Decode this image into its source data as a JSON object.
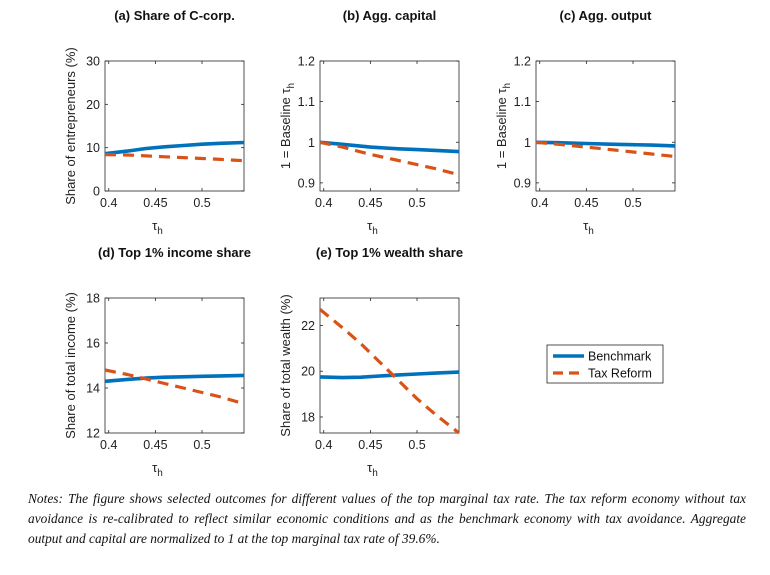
{
  "chart_data": [
    {
      "type": "line",
      "title": "(a) Share of C-corp.",
      "xlabel": "τh",
      "ylabel": "Share of entrepreneurs (%)",
      "xlim": [
        0.396,
        0.545
      ],
      "ylim": [
        0,
        30
      ],
      "xticks": [
        0.4,
        0.45,
        0.5
      ],
      "yticks": [
        0,
        10,
        20,
        30
      ],
      "series": [
        {
          "name": "Benchmark",
          "x": [
            0.396,
            0.42,
            0.44,
            0.46,
            0.48,
            0.5,
            0.52,
            0.545
          ],
          "y": [
            8.6,
            9.2,
            9.8,
            10.2,
            10.5,
            10.8,
            11.0,
            11.2
          ]
        },
        {
          "name": "Tax Reform",
          "x": [
            0.396,
            0.42,
            0.44,
            0.46,
            0.48,
            0.5,
            0.52,
            0.545
          ],
          "y": [
            8.4,
            8.3,
            8.1,
            7.9,
            7.7,
            7.5,
            7.3,
            7.0
          ]
        }
      ]
    },
    {
      "type": "line",
      "title": "(b) Agg. capital",
      "xlabel": "τh",
      "ylabel": "1 = Baseline τh",
      "xlim": [
        0.396,
        0.545
      ],
      "ylim": [
        0.88,
        1.2
      ],
      "xticks": [
        0.4,
        0.45,
        0.5
      ],
      "yticks": [
        0.9,
        1.0,
        1.1,
        1.2
      ],
      "ytick_labels": [
        "0.9",
        "1",
        "1.1",
        "1.2"
      ],
      "series": [
        {
          "name": "Benchmark",
          "x": [
            0.396,
            0.42,
            0.45,
            0.48,
            0.5,
            0.52,
            0.545
          ],
          "y": [
            1.0,
            0.995,
            0.988,
            0.984,
            0.982,
            0.98,
            0.977
          ]
        },
        {
          "name": "Tax Reform",
          "x": [
            0.396,
            0.42,
            0.45,
            0.48,
            0.5,
            0.52,
            0.545
          ],
          "y": [
            1.0,
            0.988,
            0.97,
            0.955,
            0.945,
            0.935,
            0.92
          ]
        }
      ]
    },
    {
      "type": "line",
      "title": "(c) Agg. output",
      "xlabel": "τh",
      "ylabel": "1 = Baseline τh",
      "xlim": [
        0.396,
        0.545
      ],
      "ylim": [
        0.88,
        1.2
      ],
      "xticks": [
        0.4,
        0.45,
        0.5
      ],
      "yticks": [
        0.9,
        1.0,
        1.1,
        1.2
      ],
      "ytick_labels": [
        "0.9",
        "1",
        "1.1",
        "1.2"
      ],
      "series": [
        {
          "name": "Benchmark",
          "x": [
            0.396,
            0.42,
            0.45,
            0.48,
            0.5,
            0.52,
            0.545
          ],
          "y": [
            1.0,
            0.999,
            0.997,
            0.995,
            0.994,
            0.993,
            0.991
          ]
        },
        {
          "name": "Tax Reform",
          "x": [
            0.396,
            0.42,
            0.45,
            0.48,
            0.5,
            0.52,
            0.545
          ],
          "y": [
            1.0,
            0.995,
            0.988,
            0.981,
            0.976,
            0.971,
            0.965
          ]
        }
      ]
    },
    {
      "type": "line",
      "title": "(d) Top 1% income share",
      "xlabel": "τh",
      "ylabel": "Share of total income (%)",
      "xlim": [
        0.396,
        0.545
      ],
      "ylim": [
        12,
        18
      ],
      "xticks": [
        0.4,
        0.45,
        0.5
      ],
      "yticks": [
        12,
        14,
        16,
        18
      ],
      "series": [
        {
          "name": "Benchmark",
          "x": [
            0.396,
            0.42,
            0.44,
            0.46,
            0.48,
            0.5,
            0.52,
            0.545
          ],
          "y": [
            14.3,
            14.38,
            14.44,
            14.48,
            14.5,
            14.52,
            14.54,
            14.56
          ]
        },
        {
          "name": "Tax Reform",
          "x": [
            0.396,
            0.42,
            0.44,
            0.46,
            0.48,
            0.5,
            0.52,
            0.545
          ],
          "y": [
            14.8,
            14.6,
            14.4,
            14.2,
            14.0,
            13.8,
            13.6,
            13.3
          ]
        }
      ]
    },
    {
      "type": "line",
      "title": "(e) Top 1% wealth share",
      "xlabel": "τh",
      "ylabel": "Share of total wealth (%)",
      "xlim": [
        0.396,
        0.545
      ],
      "ylim": [
        17.3,
        23.2
      ],
      "xticks": [
        0.4,
        0.45,
        0.5
      ],
      "yticks": [
        18,
        20,
        22
      ],
      "series": [
        {
          "name": "Benchmark",
          "x": [
            0.396,
            0.42,
            0.44,
            0.46,
            0.48,
            0.5,
            0.52,
            0.545
          ],
          "y": [
            19.75,
            19.72,
            19.74,
            19.79,
            19.84,
            19.88,
            19.92,
            19.96
          ]
        },
        {
          "name": "Tax Reform",
          "x": [
            0.396,
            0.42,
            0.44,
            0.46,
            0.48,
            0.5,
            0.52,
            0.545
          ],
          "y": [
            22.7,
            21.9,
            21.2,
            20.4,
            19.6,
            18.8,
            18.1,
            17.3
          ]
        }
      ]
    }
  ],
  "legend": {
    "items": [
      {
        "label": "Benchmark",
        "color": "#0072BD",
        "style": "solid"
      },
      {
        "label": "Tax Reform",
        "color": "#D95319",
        "style": "dashed"
      }
    ]
  },
  "colors": {
    "benchmark": "#0072BD",
    "reform": "#D95319"
  },
  "notes": "Notes: The figure shows selected outcomes for different values of the top marginal tax rate. The tax reform economy without tax avoidance is re-calibrated to reflect similar economic conditions and as the benchmark economy with tax avoidance. Aggregate output and capital are normalized to 1 at the top marginal tax rate of 39.6%."
}
